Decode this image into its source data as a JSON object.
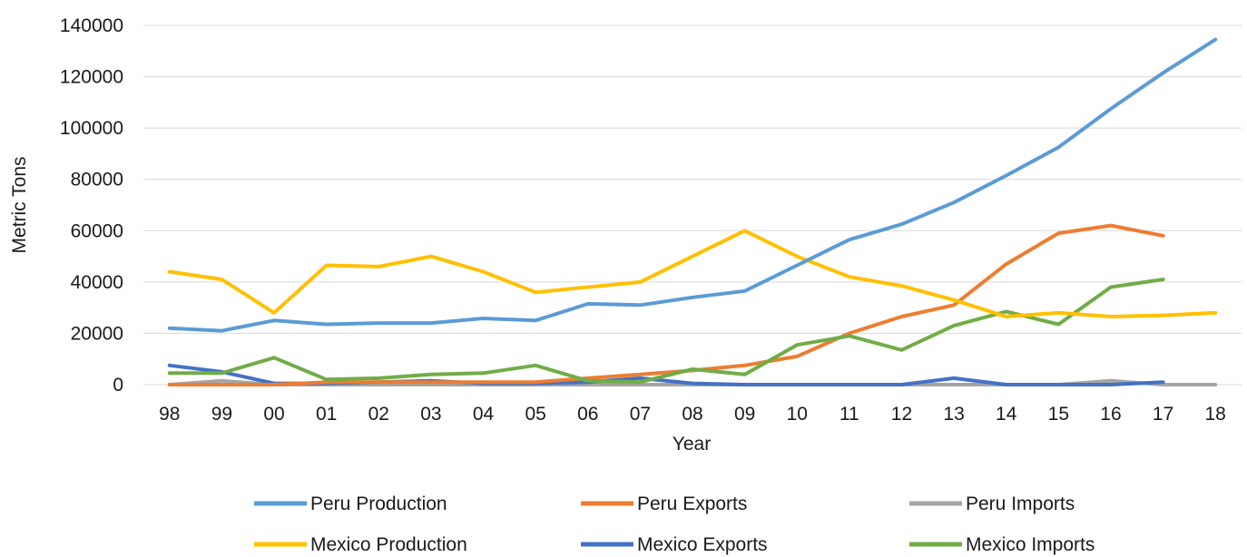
{
  "chart_data": {
    "type": "line",
    "xlabel": "Year",
    "ylabel": "Metric Tons",
    "ylim": [
      0,
      140000
    ],
    "yticks": [
      0,
      20000,
      40000,
      60000,
      80000,
      100000,
      120000,
      140000
    ],
    "grid": true,
    "legend_position": "bottom",
    "categories": [
      "98",
      "99",
      "00",
      "01",
      "02",
      "03",
      "04",
      "05",
      "06",
      "07",
      "08",
      "09",
      "10",
      "11",
      "12",
      "13",
      "14",
      "15",
      "16",
      "17",
      "18"
    ],
    "series": [
      {
        "name": "Peru Production",
        "color": "#5B9BD5",
        "values": [
          22000,
          21000,
          25000,
          23500,
          24000,
          24000,
          25800,
          25000,
          31500,
          31000,
          34000,
          36500,
          46500,
          56500,
          62500,
          71000,
          81500,
          92500,
          107500,
          121500,
          134500
        ]
      },
      {
        "name": "Peru Exports",
        "color": "#ED7D31",
        "values": [
          0,
          0,
          0,
          1000,
          1000,
          1000,
          1000,
          1000,
          2500,
          4000,
          5500,
          7500,
          11000,
          20000,
          26500,
          31000,
          47000,
          59000,
          62000,
          58000,
          null
        ]
      },
      {
        "name": "Peru Imports",
        "color": "#A5A5A5",
        "values": [
          0,
          1500,
          0,
          0,
          0,
          0,
          0,
          0,
          0,
          0,
          0,
          0,
          0,
          0,
          0,
          0,
          0,
          0,
          1500,
          0,
          0
        ]
      },
      {
        "name": "Mexico Production",
        "color": "#FFC000",
        "values": [
          44000,
          41000,
          28000,
          46500,
          46000,
          50000,
          44000,
          36000,
          38000,
          40000,
          50000,
          60000,
          50000,
          42000,
          38500,
          33000,
          26500,
          28000,
          26500,
          27000,
          28000
        ]
      },
      {
        "name": "Mexico Exports",
        "color": "#4472C4",
        "values": [
          7500,
          5000,
          500,
          500,
          1000,
          1500,
          500,
          500,
          1000,
          2500,
          500,
          0,
          0,
          0,
          0,
          2500,
          0,
          0,
          0,
          1000,
          null
        ]
      },
      {
        "name": "Mexico Imports",
        "color": "#70AD47",
        "values": [
          4500,
          4500,
          10500,
          2000,
          2500,
          4000,
          4500,
          7500,
          1500,
          1000,
          6000,
          4000,
          15500,
          19000,
          13500,
          23000,
          28500,
          23500,
          38000,
          41000,
          null
        ]
      }
    ]
  }
}
